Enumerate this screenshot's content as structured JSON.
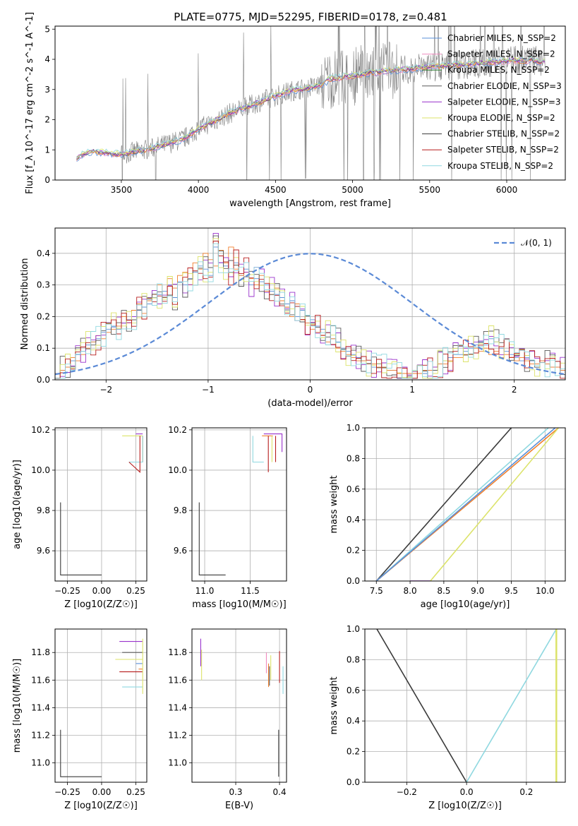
{
  "figure_title": "PLATE=0775, MJD=52295, FIBERID=0178, z=0.481",
  "colors": {
    "chabrier_miles": "#5a8fd8",
    "salpeter_miles": "#f08bbf",
    "kroupa_miles": "#2e7d32",
    "chabrier_elodie": "#5a5a5a",
    "salpeter_elodie": "#9932cc",
    "kroupa_elodie": "#dce36a",
    "chabrier_stelib": "#3a3a3a",
    "salpeter_stelib": "#b71c1c",
    "kroupa_stelib": "#8fd8e0",
    "orange": "#f07f2c",
    "data": "#808080",
    "normal": "#5b8ad6"
  },
  "chart_data": [
    {
      "type": "line",
      "title": "PLATE=0775, MJD=52295, FIBERID=0178, z=0.481",
      "xlabel": "wavelength [Angstrom, rest frame]",
      "ylabel": "Flux [f_λ 10^-17 erg cm^-2 s^-1 A^-1]",
      "xlim": [
        3070,
        6380
      ],
      "ylim": [
        0,
        5.1
      ],
      "xticks": [
        "3500",
        "4000",
        "4500",
        "5000",
        "5500",
        "6000"
      ],
      "yticks": [
        "0",
        "1",
        "2",
        "3",
        "4",
        "5"
      ],
      "legend": [
        "Chabrier MILES, N_SSP=2",
        "Salpeter MILES, N_SSP=2",
        "Kroupa MILES, N_SSP=2",
        "Chabrier ELODIE, N_SSP=3",
        "Salpeter ELODIE, N_SSP=3",
        "Kroupa ELODIE, N_SSP=2",
        "Chabrier STELIB, N_SSP=2",
        "Salpeter STELIB, N_SSP=2",
        "Kroupa STELIB, N_SSP=2"
      ],
      "model_continuum": {
        "x": [
          3210,
          3300,
          3500,
          3700,
          3900,
          4000,
          4200,
          4400,
          4600,
          4800,
          4850,
          5000,
          5200,
          5400,
          5600,
          5800,
          6000,
          6200
        ],
        "y": [
          0.75,
          0.95,
          0.85,
          1.05,
          1.35,
          1.7,
          2.2,
          2.6,
          2.95,
          3.15,
          3.35,
          3.45,
          3.6,
          3.7,
          3.8,
          3.85,
          3.95,
          3.95
        ]
      }
    },
    {
      "type": "step",
      "xlabel": "(data-model)/error",
      "ylabel": "Normed distribution",
      "xlim": [
        -2.5,
        2.5
      ],
      "ylim": [
        0,
        0.48
      ],
      "xticks": [
        "−2",
        "−1",
        "0",
        "1",
        "2"
      ],
      "yticks": [
        "0.0",
        "0.1",
        "0.2",
        "0.3",
        "0.4"
      ],
      "legend": [
        "𝒩(0, 1)"
      ],
      "bin_width": 0.1,
      "series": [
        {
          "color": "chabrier_miles",
          "values": [
            0.02,
            0.03,
            0.04,
            0.06,
            0.08,
            0.09,
            0.11,
            0.12,
            0.13,
            0.15,
            0.16,
            0.17,
            0.16,
            0.18,
            0.19,
            0.2,
            0.22,
            0.23,
            0.24,
            0.26,
            0.27,
            0.28,
            0.3,
            0.26,
            0.31,
            0.3,
            0.32,
            0.34,
            0.36,
            0.35,
            0.33,
            0.42,
            0.37,
            0.36,
            0.34,
            0.37,
            0.33,
            0.35,
            0.3,
            0.32,
            0.31,
            0.3,
            0.28,
            0.27,
            0.26,
            0.24,
            0.25,
            0.2,
            0.22,
            0.18,
            0.19,
            0.17,
            0.16,
            0.15,
            0.13,
            0.12,
            0.1,
            0.09,
            0.08,
            0.07,
            0.06,
            0.05,
            0.04,
            0.05,
            0.04,
            0.03,
            0.03,
            0.02,
            0.02,
            0.02,
            0.02,
            0.02,
            0.02,
            0.03,
            0.04,
            0.05,
            0.06,
            0.07,
            0.08,
            0.08,
            0.09,
            0.1,
            0.11,
            0.12,
            0.11,
            0.13,
            0.12,
            0.1,
            0.09,
            0.08,
            0.07,
            0.06,
            0.07,
            0.06,
            0.05,
            0.06,
            0.05,
            0.04,
            0.04,
            0.03
          ]
        },
        {
          "color": "orange",
          "values": [
            0.02,
            0.03,
            0.04,
            0.07,
            0.06,
            0.08,
            0.1,
            0.12,
            0.14,
            0.13,
            0.15,
            0.16,
            0.17,
            0.2,
            0.18,
            0.22,
            0.24,
            0.21,
            0.25,
            0.27,
            0.3,
            0.26,
            0.32,
            0.29,
            0.33,
            0.34,
            0.3,
            0.37,
            0.35,
            0.4,
            0.38,
            0.36,
            0.41,
            0.37,
            0.42,
            0.35,
            0.33,
            0.34,
            0.32,
            0.3,
            0.33,
            0.28,
            0.27,
            0.29,
            0.25,
            0.23,
            0.2,
            0.24,
            0.19,
            0.18,
            0.16,
            0.15,
            0.14,
            0.12,
            0.13,
            0.1,
            0.09,
            0.08,
            0.07,
            0.06,
            0.06,
            0.05,
            0.05,
            0.04,
            0.04,
            0.03,
            0.03,
            0.02,
            0.02,
            0.02,
            0.02,
            0.02,
            0.03,
            0.03,
            0.04,
            0.05,
            0.05,
            0.06,
            0.07,
            0.07,
            0.08,
            0.08,
            0.1,
            0.09,
            0.1,
            0.08,
            0.09,
            0.07,
            0.08,
            0.07,
            0.06,
            0.07,
            0.06,
            0.05,
            0.05,
            0.06,
            0.05,
            0.04,
            0.04,
            0.03
          ]
        }
      ],
      "normal": {
        "mean": 0,
        "sigma": 1
      }
    },
    {
      "type": "scatter",
      "xlabel": "Z [log10(Z/Z☉)]",
      "ylabel": "age [log10(age/yr)]",
      "xlim": [
        -0.34,
        0.33
      ],
      "ylim": [
        9.45,
        10.21
      ],
      "xticks": [
        "−0.25",
        "0.00",
        "0.25"
      ],
      "yticks": [
        "9.6",
        "9.8",
        "10.0",
        "10.2"
      ]
    },
    {
      "type": "scatter",
      "xlabel": "mass [log10(M/M☉)]",
      "ylabel": "",
      "xlim": [
        10.86,
        11.9
      ],
      "ylim": [
        9.45,
        10.21
      ],
      "xticks": [
        "11.0",
        "11.5"
      ],
      "yticks": [
        "9.6",
        "9.8",
        "10.0",
        "10.2"
      ]
    },
    {
      "type": "line",
      "xlabel": "age [log10(age/yr)]",
      "ylabel": "mass weight",
      "xlim": [
        7.33,
        10.3
      ],
      "ylim": [
        0,
        1
      ],
      "xticks": [
        "7.5",
        "8.0",
        "8.5",
        "9.0",
        "9.5",
        "10.0"
      ],
      "yticks": [
        "0.0",
        "0.2",
        "0.4",
        "0.6",
        "0.8",
        "1.0"
      ],
      "series": [
        {
          "color": "chabrier_stelib",
          "x": [
            7.5,
            9.5
          ],
          "y": [
            0,
            1
          ]
        },
        {
          "color": "kroupa_stelib",
          "x": [
            7.5,
            10.05
          ],
          "y": [
            0,
            1
          ]
        },
        {
          "color": "orange",
          "x": [
            7.5,
            10.2
          ],
          "y": [
            0,
            1
          ]
        },
        {
          "color": "chabrier_miles",
          "x": [
            7.5,
            10.15
          ],
          "y": [
            0,
            1
          ]
        },
        {
          "color": "kroupa_elodie",
          "x": [
            8.3,
            10.2
          ],
          "y": [
            0,
            1
          ]
        },
        {
          "color": "salpeter_elodie",
          "x": [
            8.0,
            8.3
          ],
          "y": [
            0,
            0
          ]
        }
      ]
    },
    {
      "type": "scatter",
      "xlabel": "Z [log10(Z/Z☉)]",
      "ylabel": "mass [log10(M/M☉)]",
      "xlim": [
        -0.34,
        0.33
      ],
      "ylim": [
        10.86,
        11.97
      ],
      "xticks": [
        "−0.25",
        "0.00",
        "0.25"
      ],
      "yticks": [
        "11.0",
        "11.2",
        "11.4",
        "11.6",
        "11.8"
      ]
    },
    {
      "type": "scatter",
      "xlabel": "E(B-V)",
      "ylabel": "",
      "xlim": [
        0.2,
        0.416
      ],
      "ylim": [
        10.86,
        11.97
      ],
      "xticks": [
        "0.3",
        "0.4"
      ],
      "yticks": [
        "11.0",
        "11.2",
        "11.4",
        "11.6",
        "11.8"
      ]
    },
    {
      "type": "line",
      "xlabel": "Z [log10(Z/Z☉)]",
      "ylabel": "mass weight",
      "xlim": [
        -0.34,
        0.33
      ],
      "ylim": [
        0,
        1
      ],
      "xticks": [
        "−0.2",
        "0.0",
        "0.2"
      ],
      "yticks": [
        "0.0",
        "0.2",
        "0.4",
        "0.6",
        "0.8",
        "1.0"
      ],
      "series": [
        {
          "color": "chabrier_stelib",
          "x": [
            -0.3,
            0.0
          ],
          "y": [
            1,
            0
          ]
        },
        {
          "color": "kroupa_stelib",
          "x": [
            0.0,
            0.3
          ],
          "y": [
            0,
            1
          ]
        },
        {
          "color": "kroupa_elodie",
          "x": [
            0.3,
            0.3
          ],
          "y": [
            0,
            1
          ]
        }
      ]
    }
  ]
}
